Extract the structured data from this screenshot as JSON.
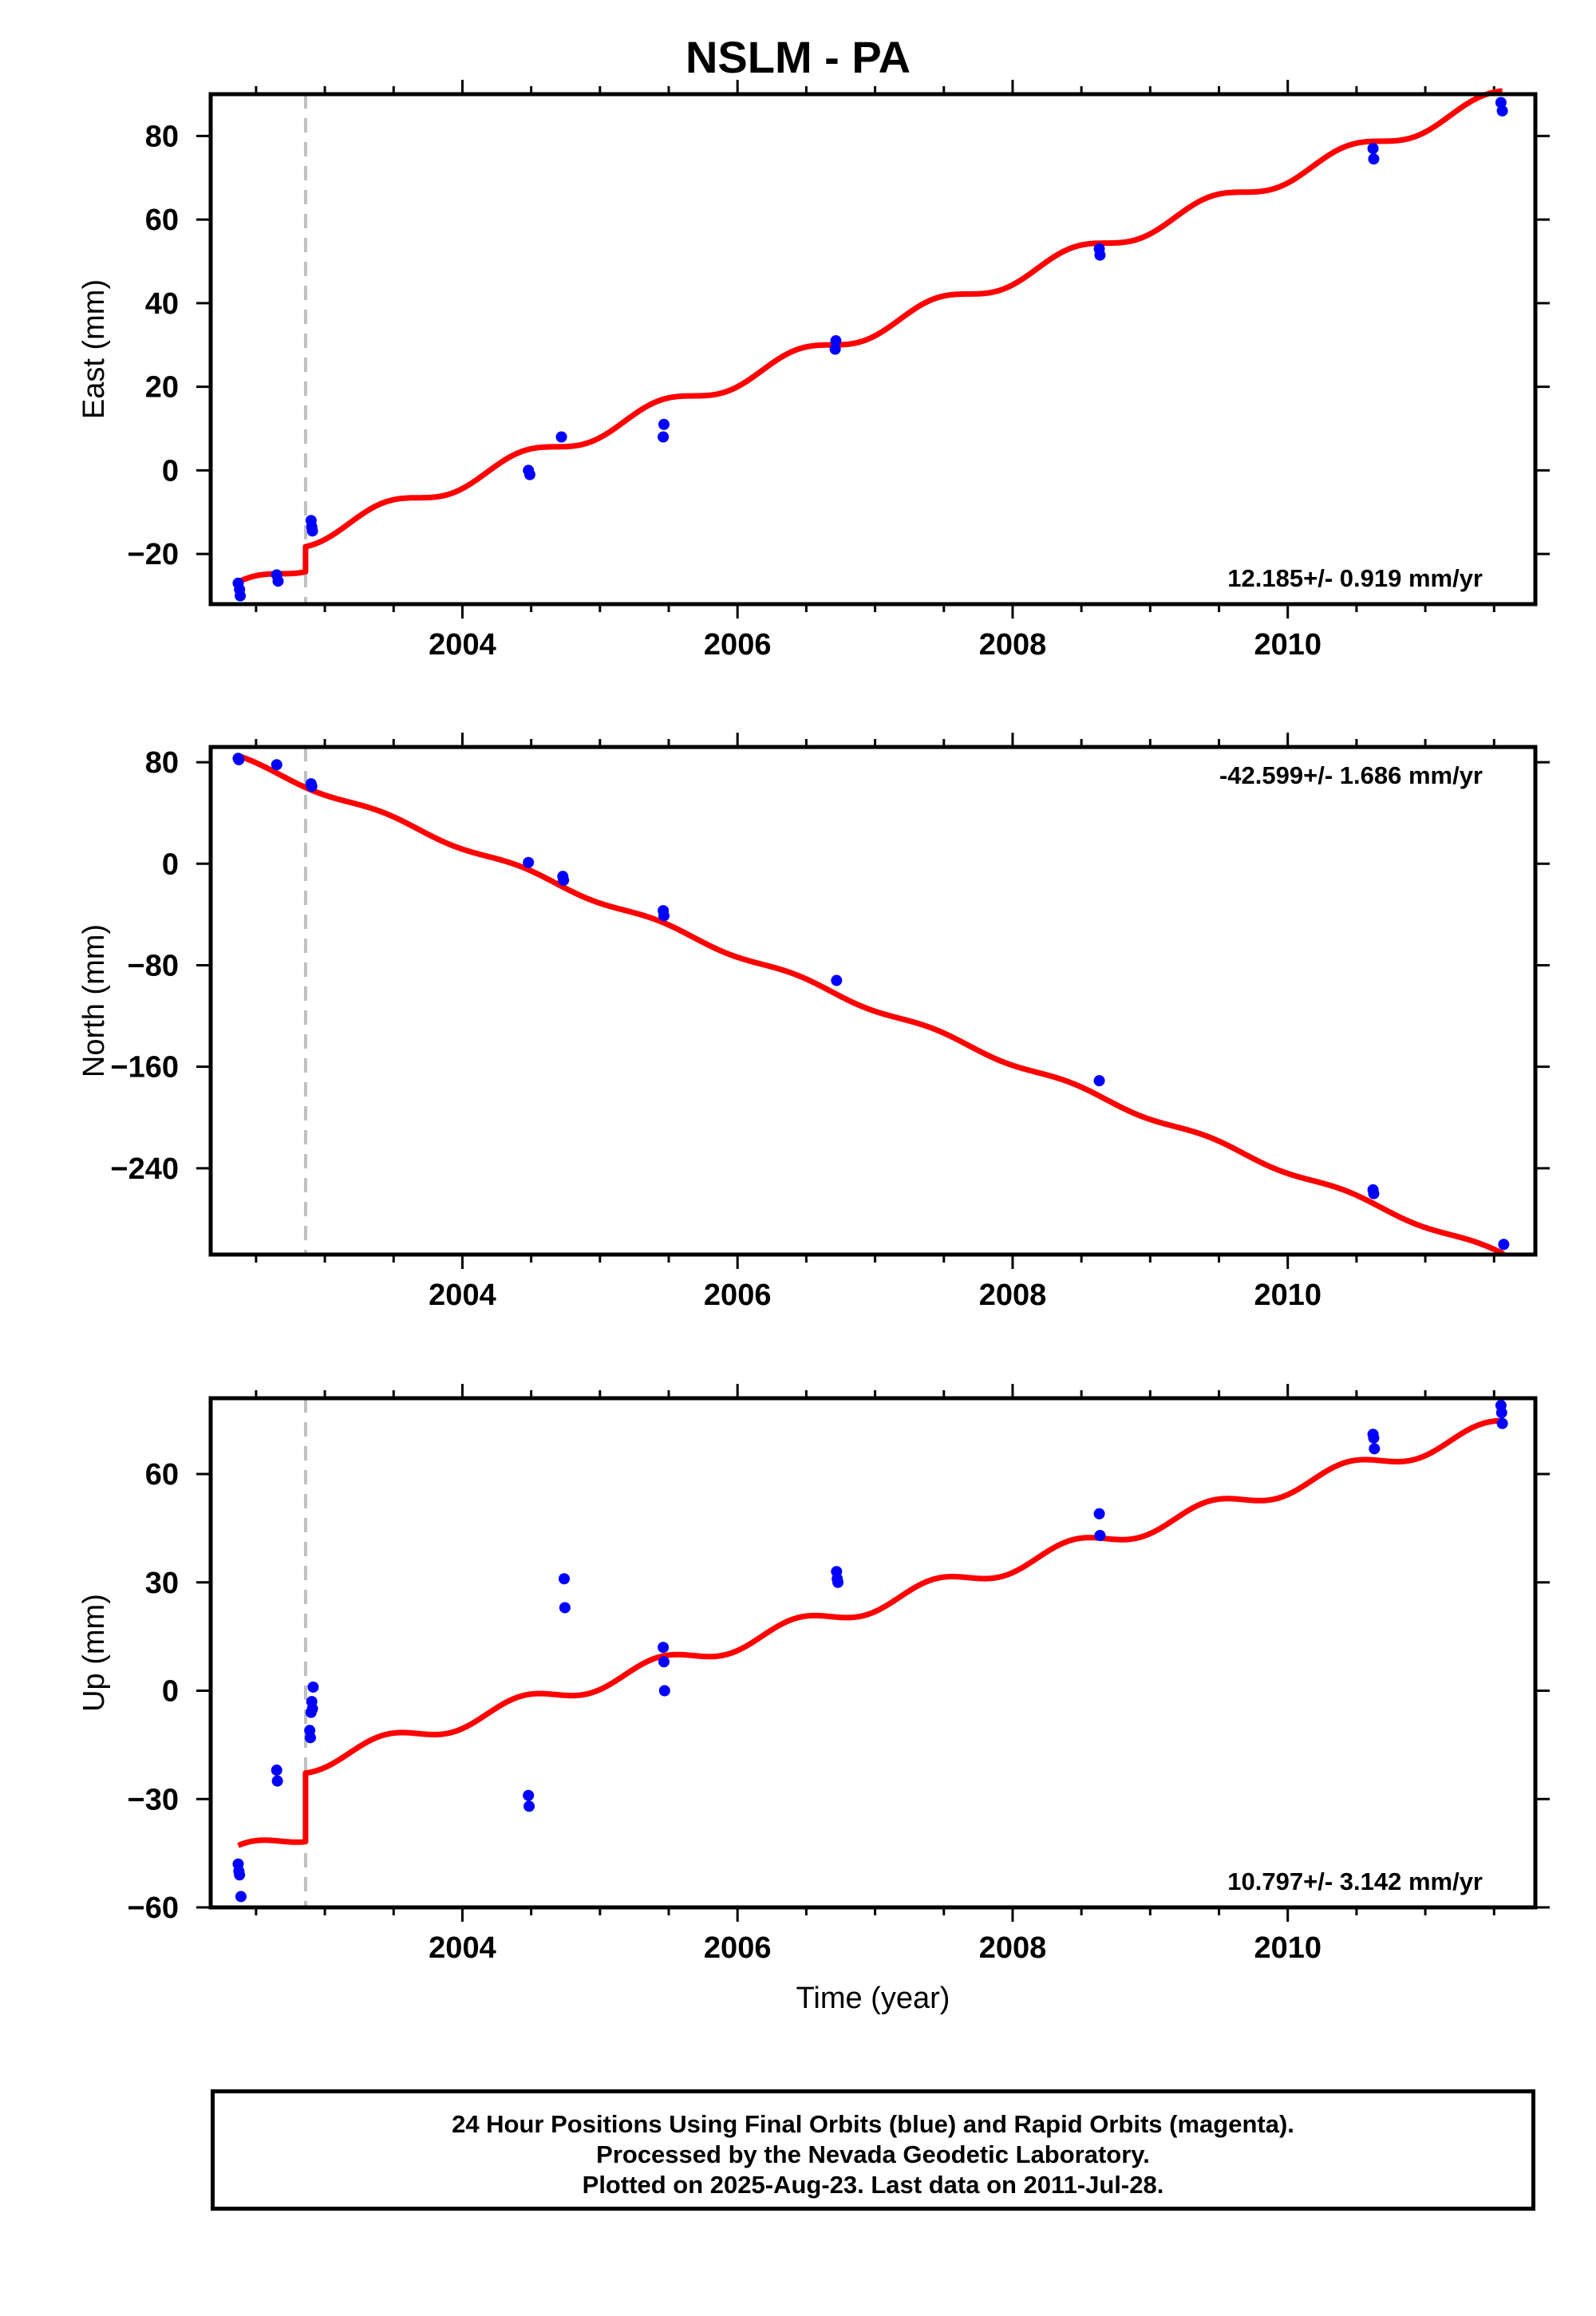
{
  "title": "NSLM - PA",
  "xlabel": "Time (year)",
  "footer": {
    "line1": "24 Hour Positions Using Final Orbits (blue) and Rapid Orbits (magenta).",
    "line2": "Processed by the Nevada Geodetic Laboratory.",
    "line3": "Plotted on 2025-Aug-23. Last data on 2011-Jul-28."
  },
  "colors": {
    "data": "#0000ff",
    "fit": "#ff0000",
    "event_line": "#c0c0c0",
    "frame": "#000000"
  },
  "chart_data": [
    {
      "type": "scatter",
      "component": "East",
      "ylabel": "East (mm)",
      "rate_label": "12.185+/- 0.919 mm/yr",
      "rate_position": "bottom-right",
      "xlim": [
        2002.17,
        2011.8
      ],
      "ylim": [
        -32,
        90
      ],
      "xticks": [
        2004,
        2006,
        2008,
        2010
      ],
      "yticks": [
        -20,
        0,
        20,
        40,
        60,
        80
      ],
      "event_x": 2002.86,
      "points": [
        [
          2002.37,
          -27
        ],
        [
          2002.38,
          -28.5
        ],
        [
          2002.385,
          -30
        ],
        [
          2002.65,
          -25
        ],
        [
          2002.66,
          -26.5
        ],
        [
          2002.9,
          -12
        ],
        [
          2002.905,
          -13.5
        ],
        [
          2002.91,
          -14.5
        ],
        [
          2004.48,
          0
        ],
        [
          2004.49,
          -1
        ],
        [
          2004.72,
          8
        ],
        [
          2005.46,
          8
        ],
        [
          2005.465,
          11
        ],
        [
          2006.71,
          29
        ],
        [
          2006.715,
          31
        ],
        [
          2008.63,
          53
        ],
        [
          2008.635,
          51.5
        ],
        [
          2010.62,
          77
        ],
        [
          2010.625,
          74.5
        ],
        [
          2011.55,
          88
        ],
        [
          2011.56,
          86
        ]
      ],
      "fit": {
        "t0": 2002.37,
        "v0": -28.5,
        "rate": 12.185,
        "annual_amp": 1.9,
        "annual_phase": 1.2,
        "steps": [
          {
            "x": 2002.86,
            "dy": 6.0
          }
        ]
      }
    },
    {
      "type": "scatter",
      "component": "North",
      "ylabel": "North (mm)",
      "rate_label": "-42.599+/- 1.686 mm/yr",
      "rate_position": "top-right",
      "xlim": [
        2002.17,
        2011.8
      ],
      "ylim": [
        -308,
        92
      ],
      "xticks": [
        2004,
        2006,
        2008,
        2010
      ],
      "yticks": [
        -240,
        -160,
        -80,
        0,
        80
      ],
      "event_x": 2002.86,
      "points": [
        [
          2002.37,
          83
        ],
        [
          2002.375,
          82
        ],
        [
          2002.65,
          78
        ],
        [
          2002.9,
          63
        ],
        [
          2002.905,
          61
        ],
        [
          2004.48,
          1
        ],
        [
          2004.73,
          -10
        ],
        [
          2004.735,
          -13
        ],
        [
          2005.46,
          -37
        ],
        [
          2005.465,
          -41
        ],
        [
          2006.72,
          -92
        ],
        [
          2008.63,
          -171
        ],
        [
          2010.62,
          -257
        ],
        [
          2010.625,
          -260
        ],
        [
          2011.57,
          -300
        ]
      ],
      "fit": {
        "t0": 2002.37,
        "v0": 83,
        "rate": -42.599,
        "annual_amp": 2.3,
        "annual_phase": 1.2,
        "steps": []
      }
    },
    {
      "type": "scatter",
      "component": "Up",
      "ylabel": "Up (mm)",
      "rate_label": "10.797+/- 3.142 mm/yr",
      "rate_position": "bottom-right",
      "xlim": [
        2002.17,
        2011.8
      ],
      "ylim": [
        -60,
        81
      ],
      "xticks": [
        2004,
        2006,
        2008,
        2010
      ],
      "yticks": [
        -60,
        -30,
        0,
        30,
        60
      ],
      "event_x": 2002.86,
      "points": [
        [
          2002.37,
          -48
        ],
        [
          2002.375,
          -50
        ],
        [
          2002.38,
          -51
        ],
        [
          2002.39,
          -57
        ],
        [
          2002.65,
          -22
        ],
        [
          2002.655,
          -25
        ],
        [
          2002.89,
          -11
        ],
        [
          2002.895,
          -13
        ],
        [
          2002.9,
          -6
        ],
        [
          2002.905,
          -3
        ],
        [
          2002.91,
          -5
        ],
        [
          2002.915,
          1
        ],
        [
          2004.48,
          -29
        ],
        [
          2004.485,
          -32
        ],
        [
          2004.74,
          31
        ],
        [
          2004.745,
          23
        ],
        [
          2005.46,
          12
        ],
        [
          2005.465,
          8
        ],
        [
          2005.47,
          0
        ],
        [
          2006.72,
          33
        ],
        [
          2006.725,
          31
        ],
        [
          2006.73,
          30
        ],
        [
          2008.63,
          49
        ],
        [
          2008.635,
          43
        ],
        [
          2010.62,
          71
        ],
        [
          2010.625,
          70
        ],
        [
          2010.63,
          67
        ],
        [
          2011.55,
          79
        ],
        [
          2011.555,
          77
        ],
        [
          2011.56,
          74
        ]
      ],
      "fit": {
        "t0": 2002.37,
        "v0": -45,
        "rate": 10.797,
        "annual_amp": 2.3,
        "annual_phase": 1.2,
        "steps": [
          {
            "x": 2002.86,
            "dy": 19.0
          }
        ]
      }
    }
  ]
}
